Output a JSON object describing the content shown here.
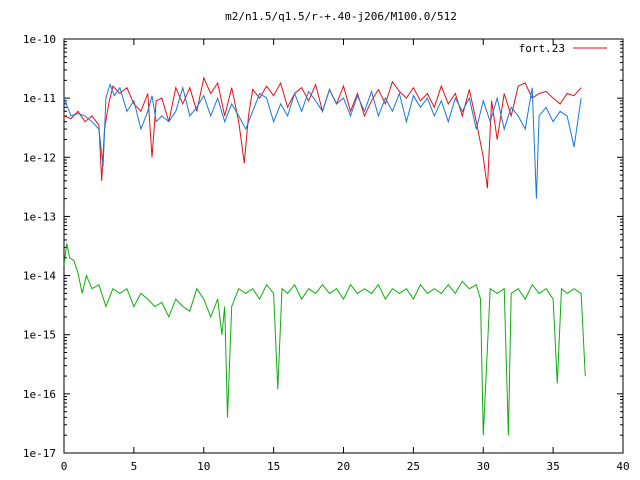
{
  "chart_data": {
    "type": "line",
    "title": "m2/n1.5/q1.5/r-+.40-j206/M100.0/512",
    "xlabel": "",
    "ylabel": "",
    "xlim": [
      0,
      40
    ],
    "ylim": [
      1e-17,
      1e-10
    ],
    "y_scale": "log",
    "grid": false,
    "legend_position": "top-right",
    "x_ticks": [
      "0",
      "5",
      "10",
      "15",
      "20",
      "25",
      "30",
      "35",
      "40"
    ],
    "y_ticks": [
      "1e-10",
      "1e-11",
      "1e-12",
      "1e-13",
      "1e-14",
      "1e-15",
      "1e-16",
      "1e-17"
    ],
    "series": [
      {
        "name": "fort.23",
        "color": "#e0101a",
        "x": [
          0,
          0.5,
          1.0,
          1.5,
          2.0,
          2.5,
          2.7,
          2.9,
          3.2,
          3.5,
          4.0,
          4.5,
          5.0,
          5.5,
          6.0,
          6.3,
          6.6,
          7.0,
          7.5,
          8.0,
          8.5,
          9.0,
          9.5,
          10.0,
          10.5,
          11.0,
          11.5,
          12.0,
          12.5,
          12.9,
          13.2,
          13.5,
          14.0,
          14.5,
          15.0,
          15.5,
          16.0,
          16.5,
          17.0,
          17.5,
          18.0,
          18.5,
          19.0,
          19.5,
          20.0,
          20.5,
          21.0,
          21.5,
          22.0,
          22.5,
          23.0,
          23.5,
          24.0,
          24.5,
          25.0,
          25.5,
          26.0,
          26.5,
          27.0,
          27.5,
          28.0,
          28.5,
          29.0,
          29.5,
          30.0,
          30.3,
          30.6,
          31.0,
          31.5,
          32.0,
          32.5,
          33.0,
          33.5,
          34.0,
          34.5,
          35.0,
          35.5,
          36.0,
          36.5,
          37.0
        ],
        "y": [
          5e-12,
          4.5e-12,
          6e-12,
          4e-12,
          5e-12,
          3.5e-12,
          4e-13,
          3e-12,
          8e-12,
          1.6e-11,
          1.2e-11,
          1.5e-11,
          8e-12,
          6e-12,
          1.2e-11,
          1e-12,
          9e-12,
          1e-11,
          4e-12,
          1.5e-11,
          8e-12,
          1.5e-11,
          6e-12,
          2.2e-11,
          1.2e-11,
          1.8e-11,
          5e-12,
          1.5e-11,
          4e-12,
          8e-13,
          5e-12,
          1.4e-11,
          1e-11,
          1.6e-11,
          1.1e-11,
          1.8e-11,
          7e-12,
          1.2e-11,
          1.5e-11,
          9e-12,
          1.7e-11,
          6e-12,
          1.4e-11,
          8e-12,
          1.6e-11,
          6e-12,
          1.2e-11,
          5e-12,
          9e-12,
          1.4e-11,
          8e-12,
          1.9e-11,
          1.3e-11,
          1e-11,
          1.5e-11,
          9e-12,
          1.2e-11,
          7e-12,
          1.6e-11,
          8e-12,
          1.2e-11,
          5e-12,
          1.4e-11,
          4e-12,
          1e-12,
          3e-13,
          9e-12,
          2e-12,
          1.2e-11,
          5e-12,
          1.6e-11,
          1.8e-11,
          1e-11,
          1.2e-11,
          1.3e-11,
          1e-11,
          8e-12,
          1.2e-11,
          1.1e-11,
          1.5e-11
        ]
      },
      {
        "color": "#1a77d6",
        "x": [
          0,
          0.5,
          1.0,
          1.5,
          2.0,
          2.5,
          2.8,
          3.0,
          3.3,
          3.6,
          4.0,
          4.5,
          5.0,
          5.5,
          6.0,
          6.3,
          6.6,
          7.0,
          7.5,
          8.0,
          8.5,
          9.0,
          9.5,
          10.0,
          10.5,
          11.0,
          11.5,
          12.0,
          12.5,
          13.0,
          13.5,
          14.0,
          14.5,
          15.0,
          15.5,
          16.0,
          16.5,
          17.0,
          17.5,
          18.0,
          18.5,
          19.0,
          19.5,
          20.0,
          20.5,
          21.0,
          21.5,
          22.0,
          22.5,
          23.0,
          23.5,
          24.0,
          24.5,
          25.0,
          25.5,
          26.0,
          26.5,
          27.0,
          27.5,
          28.0,
          28.5,
          29.0,
          29.5,
          30.0,
          30.5,
          31.0,
          31.5,
          32.0,
          32.5,
          33.0,
          33.5,
          33.8,
          34.0,
          34.5,
          35.0,
          35.5,
          36.0,
          36.5,
          37.0
        ],
        "y": [
          1e-11,
          5e-12,
          5.5e-12,
          5e-12,
          4e-12,
          3e-12,
          7e-13,
          1e-11,
          1.7e-11,
          1.1e-11,
          1.5e-11,
          6e-12,
          9e-12,
          3e-12,
          6e-12,
          1.1e-11,
          4e-12,
          5e-12,
          4e-12,
          6e-12,
          1.5e-11,
          5e-12,
          7e-12,
          1.1e-11,
          5e-12,
          1e-11,
          4e-12,
          8e-12,
          5e-12,
          3e-12,
          6e-12,
          1.2e-11,
          1e-11,
          4e-12,
          8e-12,
          5e-12,
          1.2e-11,
          6e-12,
          1.3e-11,
          9e-12,
          6e-12,
          1.4e-11,
          8e-12,
          1e-11,
          5e-12,
          1.1e-11,
          6e-12,
          1.3e-11,
          5e-12,
          1e-11,
          6e-12,
          1.2e-11,
          4e-12,
          1.1e-11,
          7e-12,
          1e-11,
          5e-12,
          9e-12,
          4e-12,
          1e-11,
          6e-12,
          1e-11,
          3e-12,
          9e-12,
          4e-12,
          1e-11,
          3e-12,
          7e-12,
          5e-12,
          3e-12,
          1.5e-11,
          2e-13,
          5e-12,
          7e-12,
          4e-12,
          6e-12,
          5e-12,
          1.5e-12,
          1e-11
        ]
      },
      {
        "color": "#11aa11",
        "x": [
          0,
          0.2,
          0.4,
          0.7,
          1.0,
          1.3,
          1.6,
          2.0,
          2.5,
          3.0,
          3.5,
          4.0,
          4.5,
          5.0,
          5.5,
          6.0,
          6.5,
          7.0,
          7.5,
          8.0,
          8.5,
          9.0,
          9.5,
          10.0,
          10.5,
          11.0,
          11.3,
          11.5,
          11.7,
          12.0,
          12.5,
          13.0,
          13.5,
          14.0,
          14.5,
          15.0,
          15.3,
          15.6,
          16.0,
          16.5,
          17.0,
          17.5,
          18.0,
          18.5,
          19.0,
          19.5,
          20.0,
          20.5,
          21.0,
          21.5,
          22.0,
          22.5,
          23.0,
          23.5,
          24.0,
          24.5,
          25.0,
          25.5,
          26.0,
          26.5,
          27.0,
          27.5,
          28.0,
          28.5,
          29.0,
          29.5,
          29.8,
          30.0,
          30.5,
          31.0,
          31.5,
          31.8,
          32.0,
          32.5,
          33.0,
          33.5,
          34.0,
          34.5,
          35.0,
          35.3,
          35.6,
          36.0,
          36.5,
          37.0,
          37.3
        ],
        "y": [
          1.5e-14,
          3.5e-14,
          2e-14,
          1.8e-14,
          1.1e-14,
          5e-15,
          1e-14,
          6e-15,
          7e-15,
          3e-15,
          6e-15,
          5e-15,
          6e-15,
          3e-15,
          5e-15,
          4e-15,
          3e-15,
          3.5e-15,
          2e-15,
          4e-15,
          3e-15,
          2.5e-15,
          6e-15,
          4e-15,
          2e-15,
          4e-15,
          1e-15,
          3e-15,
          4e-17,
          3e-15,
          6e-15,
          5e-15,
          6e-15,
          4e-15,
          7e-15,
          5e-15,
          1.2e-16,
          6e-15,
          5e-15,
          7e-15,
          4e-15,
          6e-15,
          5e-15,
          7e-15,
          5e-15,
          6e-15,
          4e-15,
          7e-15,
          5e-15,
          6e-15,
          5e-15,
          7e-15,
          4e-15,
          6e-15,
          5e-15,
          6e-15,
          4e-15,
          7e-15,
          5e-15,
          6e-15,
          5e-15,
          7e-15,
          5e-15,
          8e-15,
          6e-15,
          7e-15,
          4e-15,
          2e-17,
          6e-15,
          5e-15,
          6e-15,
          2e-17,
          5e-15,
          6e-15,
          4e-15,
          7e-15,
          5e-15,
          6e-15,
          4e-15,
          1.5e-16,
          6e-15,
          5e-15,
          6e-15,
          5e-15,
          2e-16
        ]
      }
    ]
  }
}
